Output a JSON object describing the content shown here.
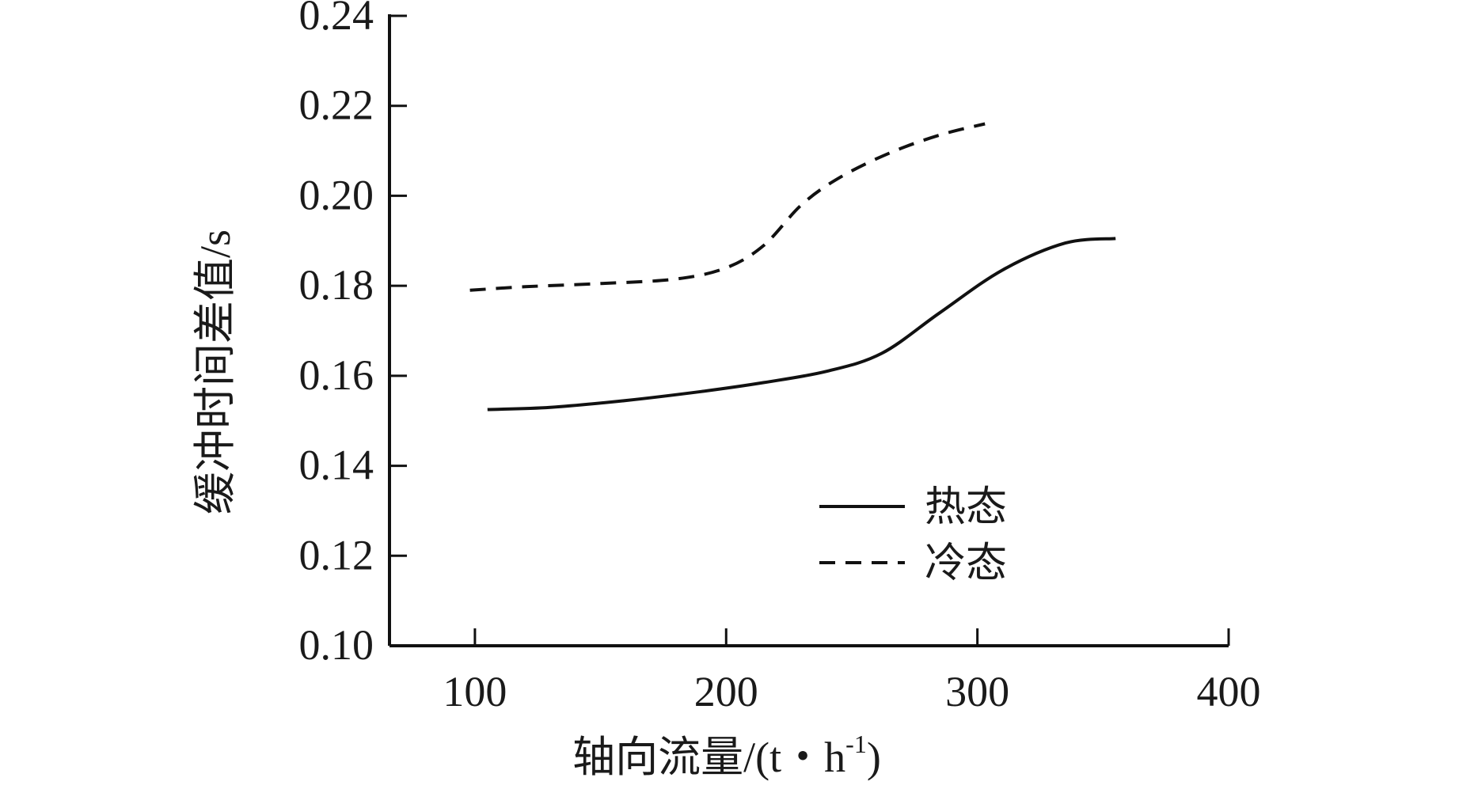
{
  "chart_data": {
    "type": "line",
    "xlabel": "轴向流量/(t・h",
    "xlabel_sup": "-1",
    "xlabel_close": ")",
    "ylabel": "缓冲时间差值/s",
    "xlim": [
      66,
      400
    ],
    "ylim": [
      0.1,
      0.24
    ],
    "x_ticks": [
      "100",
      "200",
      "300",
      "400"
    ],
    "y_ticks": [
      "0.10",
      "0.12",
      "0.14",
      "0.16",
      "0.18",
      "0.20",
      "0.22",
      "0.24"
    ],
    "grid": false,
    "legend_position": "lower-right",
    "series": [
      {
        "name": "热态",
        "style": "solid",
        "color": "#111111",
        "x": [
          105,
          130,
          160,
          190,
          215,
          240,
          262,
          285,
          310,
          335,
          355
        ],
        "y": [
          0.1525,
          0.153,
          0.1545,
          0.1565,
          0.1585,
          0.161,
          0.165,
          0.174,
          0.1835,
          0.1895,
          0.1905
        ]
      },
      {
        "name": "冷态",
        "style": "dashed",
        "color": "#111111",
        "x": [
          98,
          120,
          150,
          180,
          200,
          215,
          230,
          245,
          265,
          285,
          303
        ],
        "y": [
          0.179,
          0.1798,
          0.1805,
          0.1815,
          0.184,
          0.189,
          0.198,
          0.204,
          0.2095,
          0.2135,
          0.216
        ]
      }
    ]
  }
}
